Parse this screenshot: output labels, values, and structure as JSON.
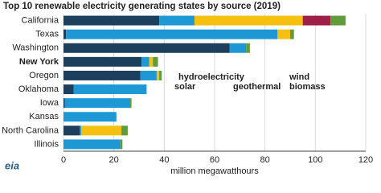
{
  "chart_data": {
    "type": "stacked_bar_horizontal",
    "title": "Top 10 renewable electricity generating states by source (2019)",
    "x_label": "million megawatthours",
    "logo": "eia",
    "categories": [
      "California",
      "Texas",
      "Washington",
      "New York",
      "Oregon",
      "Oklahoma",
      "Iowa",
      "Kansas",
      "North Carolina",
      "Illinois"
    ],
    "series": [
      {
        "name": "hydroelectricity",
        "color": "#1c3f5e",
        "values": [
          38,
          1,
          66,
          31,
          30.5,
          4,
          0.5,
          0,
          6.5,
          0.1
        ]
      },
      {
        "name": "wind",
        "color": "#1e98d4",
        "values": [
          14,
          84,
          6.5,
          3,
          6.5,
          29,
          26,
          21,
          0.5,
          22.5
        ]
      },
      {
        "name": "solar",
        "color": "#f6c010",
        "values": [
          43,
          5,
          0,
          1.5,
          1,
          0,
          0,
          0,
          16,
          0
        ]
      },
      {
        "name": "geothermal",
        "color": "#9e1f47",
        "values": [
          11,
          0,
          0,
          0,
          0,
          0,
          0,
          0,
          0,
          0
        ]
      },
      {
        "name": "biomass",
        "color": "#5f9c3b",
        "values": [
          6,
          1.5,
          1.5,
          2,
          1,
          0,
          0.5,
          0,
          2.5,
          0.8
        ]
      }
    ],
    "xlim": [
      0,
      120
    ],
    "xticks": [
      0,
      20,
      40,
      60,
      80,
      100,
      120
    ],
    "grid": true
  }
}
